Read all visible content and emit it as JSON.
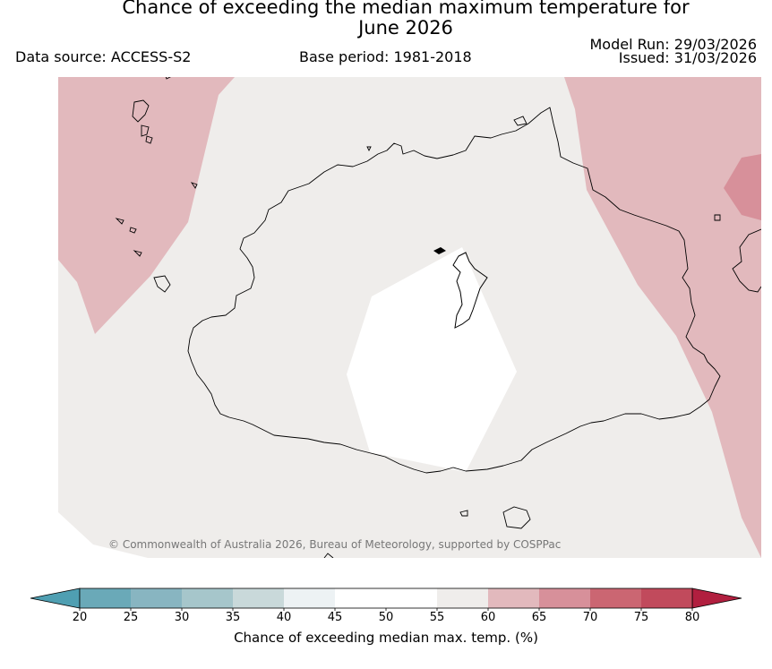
{
  "header": {
    "title_line1": "Chance of exceeding the median maximum temperature for",
    "title_line2": "June 2026",
    "data_source": "Data source: ACCESS-S2",
    "base_period": "Base period: 1981-2018",
    "model_run": "Model Run: 29/03/2026",
    "issued": "Issued: 31/03/2026"
  },
  "map": {
    "copyright": "© Commonwealth of Australia 2026, Bureau of Meteorology, supported by COSPPac",
    "region_description": "Fiji – Viti Levu",
    "dominant_category": "55-60",
    "colors": {
      "background": "#efedeb",
      "cat_60_65": "#e2b9bd",
      "cat_65_70": "#d7909a",
      "cat_45_55": "#ffffff",
      "coastline": "#000000"
    }
  },
  "colorbar": {
    "label": "Chance of exceeding median max. temp. (%)",
    "ticks": [
      "20",
      "25",
      "30",
      "35",
      "40",
      "45",
      "50",
      "55",
      "60",
      "65",
      "70",
      "75",
      "80"
    ],
    "extend": "both",
    "low_color": "#4f9fb2",
    "high_color": "#b11f3f",
    "colors": [
      "#6aa9b8",
      "#88b5c1",
      "#a6c6cb",
      "#c9d9da",
      "#edf2f4",
      "#ffffff",
      "#ffffff",
      "#efedeb",
      "#e2b9bd",
      "#d7909a",
      "#cb6672",
      "#c14a5c"
    ]
  }
}
